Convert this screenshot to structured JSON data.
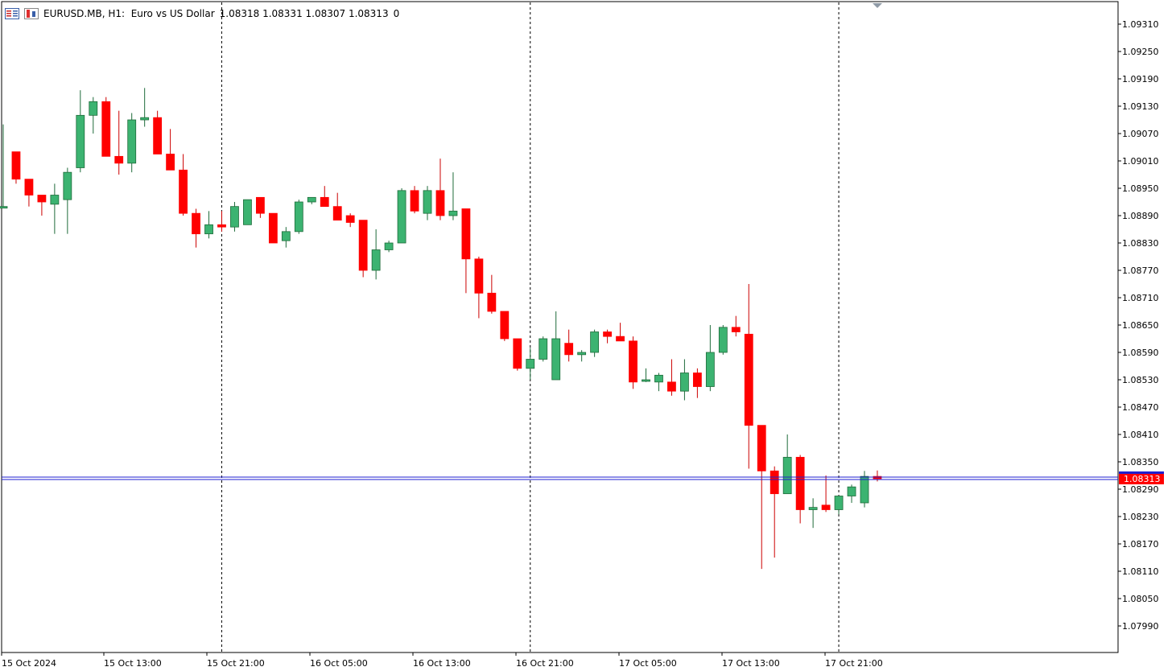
{
  "header": {
    "symbol_info": "EURUSD.MB, H1:  Euro vs US Dollar",
    "ohlc_values": "1.08318 1.08331 1.08307 1.08313",
    "tick_volume": "0",
    "icons": [
      "chart-window-icon",
      "trading-icon"
    ]
  },
  "price_axis": {
    "labels": [
      "1.09310",
      "1.09250",
      "1.09190",
      "1.09130",
      "1.09070",
      "1.09010",
      "1.08950",
      "1.08890",
      "1.08830",
      "1.08770",
      "1.08710",
      "1.08650",
      "1.08590",
      "1.08530",
      "1.08470",
      "1.08410",
      "1.08350",
      "1.08290",
      "1.08230",
      "1.08170",
      "1.08110",
      "1.08050",
      "1.07990"
    ],
    "current_price": "1.08313"
  },
  "time_axis": {
    "labels": [
      "15 Oct 2024",
      "15 Oct 13:00",
      "15 Oct 21:00",
      "16 Oct 05:00",
      "16 Oct 13:00",
      "16 Oct 21:00",
      "17 Oct 05:00",
      "17 Oct 13:00",
      "17 Oct 21:00"
    ]
  },
  "colors": {
    "bull": "#3cb371",
    "bear": "#ff0000",
    "bid_line": "#1f1fd0",
    "current_price_bg": "#ff0000",
    "grid_separator": "#000000"
  },
  "chart_data": {
    "type": "candlestick",
    "timeframe": "H1",
    "symbol": "EURUSD.MB",
    "ylim": [
      1.0796,
      1.0934
    ],
    "candles": [
      {
        "t": "15 Oct 2024 04:00",
        "o": 1.0891,
        "h": 1.0909,
        "l": 1.0891,
        "c": 1.0891
      },
      {
        "t": "15 Oct 2024 05:00",
        "o": 1.0903,
        "h": 1.0903,
        "l": 1.0896,
        "c": 1.0897
      },
      {
        "t": "15 Oct 2024 06:00",
        "o": 1.0897,
        "h": 1.0897,
        "l": 1.0891,
        "c": 1.08935
      },
      {
        "t": "15 Oct 2024 07:00",
        "o": 1.08935,
        "h": 1.08935,
        "l": 1.0889,
        "c": 1.0892
      },
      {
        "t": "15 Oct 2024 08:00",
        "o": 1.08915,
        "h": 1.0896,
        "l": 1.0885,
        "c": 1.08935
      },
      {
        "t": "15 Oct 2024 09:00",
        "o": 1.08925,
        "h": 1.08995,
        "l": 1.0885,
        "c": 1.08985
      },
      {
        "t": "15 Oct 2024 10:00",
        "o": 1.08995,
        "h": 1.09165,
        "l": 1.08985,
        "c": 1.0911
      },
      {
        "t": "15 Oct 2024 11:00",
        "o": 1.0911,
        "h": 1.0915,
        "l": 1.0907,
        "c": 1.0914
      },
      {
        "t": "15 Oct 2024 12:00",
        "o": 1.0914,
        "h": 1.0915,
        "l": 1.0902,
        "c": 1.0902
      },
      {
        "t": "15 Oct 2024 13:00",
        "o": 1.0902,
        "h": 1.0912,
        "l": 1.0898,
        "c": 1.09005
      },
      {
        "t": "15 Oct 2024 14:00",
        "o": 1.09005,
        "h": 1.09115,
        "l": 1.08985,
        "c": 1.091
      },
      {
        "t": "15 Oct 2024 15:00",
        "o": 1.091,
        "h": 1.0917,
        "l": 1.09085,
        "c": 1.09105
      },
      {
        "t": "15 Oct 2024 16:00",
        "o": 1.09105,
        "h": 1.0912,
        "l": 1.09025,
        "c": 1.09025
      },
      {
        "t": "15 Oct 2024 17:00",
        "o": 1.09025,
        "h": 1.0908,
        "l": 1.0899,
        "c": 1.0899
      },
      {
        "t": "15 Oct 2024 18:00",
        "o": 1.0899,
        "h": 1.09025,
        "l": 1.0889,
        "c": 1.08895
      },
      {
        "t": "15 Oct 2024 19:00",
        "o": 1.08895,
        "h": 1.08905,
        "l": 1.0882,
        "c": 1.0885
      },
      {
        "t": "15 Oct 2024 20:00",
        "o": 1.0885,
        "h": 1.089,
        "l": 1.0884,
        "c": 1.0887
      },
      {
        "t": "15 Oct 2024 21:00",
        "o": 1.0887,
        "h": 1.089,
        "l": 1.08855,
        "c": 1.08865
      },
      {
        "t": "15 Oct 2024 22:00",
        "o": 1.08865,
        "h": 1.0892,
        "l": 1.08855,
        "c": 1.0891
      },
      {
        "t": "15 Oct 2024 23:00",
        "o": 1.0887,
        "h": 1.08925,
        "l": 1.0887,
        "c": 1.08925
      },
      {
        "t": "16 Oct 2024 00:00",
        "o": 1.0893,
        "h": 1.0893,
        "l": 1.08885,
        "c": 1.08895
      },
      {
        "t": "16 Oct 2024 01:00",
        "o": 1.08895,
        "h": 1.08895,
        "l": 1.0883,
        "c": 1.0883
      },
      {
        "t": "16 Oct 2024 02:00",
        "o": 1.08835,
        "h": 1.08865,
        "l": 1.0882,
        "c": 1.08855
      },
      {
        "t": "16 Oct 2024 03:00",
        "o": 1.08855,
        "h": 1.08925,
        "l": 1.0885,
        "c": 1.0892
      },
      {
        "t": "16 Oct 2024 04:00",
        "o": 1.0892,
        "h": 1.0893,
        "l": 1.08915,
        "c": 1.0893
      },
      {
        "t": "16 Oct 2024 05:00",
        "o": 1.0893,
        "h": 1.08955,
        "l": 1.0891,
        "c": 1.0891
      },
      {
        "t": "16 Oct 2024 06:00",
        "o": 1.0891,
        "h": 1.0894,
        "l": 1.0888,
        "c": 1.0888
      },
      {
        "t": "16 Oct 2024 07:00",
        "o": 1.0889,
        "h": 1.08895,
        "l": 1.08865,
        "c": 1.08875
      },
      {
        "t": "16 Oct 2024 08:00",
        "o": 1.0888,
        "h": 1.0888,
        "l": 1.08755,
        "c": 1.0877
      },
      {
        "t": "16 Oct 2024 09:00",
        "o": 1.0877,
        "h": 1.0886,
        "l": 1.0875,
        "c": 1.08815
      },
      {
        "t": "16 Oct 2024 10:00",
        "o": 1.08815,
        "h": 1.08835,
        "l": 1.0881,
        "c": 1.0883
      },
      {
        "t": "16 Oct 2024 11:00",
        "o": 1.0883,
        "h": 1.0895,
        "l": 1.0883,
        "c": 1.08945
      },
      {
        "t": "16 Oct 2024 12:00",
        "o": 1.08945,
        "h": 1.08955,
        "l": 1.08895,
        "c": 1.089
      },
      {
        "t": "16 Oct 2024 13:00",
        "o": 1.08895,
        "h": 1.08955,
        "l": 1.0888,
        "c": 1.08945
      },
      {
        "t": "16 Oct 2024 14:00",
        "o": 1.08945,
        "h": 1.09015,
        "l": 1.0888,
        "c": 1.0889
      },
      {
        "t": "16 Oct 2024 15:00",
        "o": 1.0889,
        "h": 1.08985,
        "l": 1.0888,
        "c": 1.089
      },
      {
        "t": "16 Oct 2024 16:00",
        "o": 1.08905,
        "h": 1.08905,
        "l": 1.0872,
        "c": 1.08795
      },
      {
        "t": "16 Oct 2024 17:00",
        "o": 1.08795,
        "h": 1.088,
        "l": 1.08665,
        "c": 1.0872
      },
      {
        "t": "16 Oct 2024 18:00",
        "o": 1.0872,
        "h": 1.0876,
        "l": 1.08675,
        "c": 1.0868
      },
      {
        "t": "16 Oct 2024 19:00",
        "o": 1.0868,
        "h": 1.0868,
        "l": 1.08615,
        "c": 1.0862
      },
      {
        "t": "16 Oct 2024 20:00",
        "o": 1.0862,
        "h": 1.0862,
        "l": 1.0855,
        "c": 1.08555
      },
      {
        "t": "16 Oct 2024 21:00",
        "o": 1.08555,
        "h": 1.086,
        "l": 1.0853,
        "c": 1.08575
      },
      {
        "t": "16 Oct 2024 22:00",
        "o": 1.08575,
        "h": 1.08625,
        "l": 1.0857,
        "c": 1.0862
      },
      {
        "t": "16 Oct 2024 23:00",
        "o": 1.0853,
        "h": 1.0868,
        "l": 1.0853,
        "c": 1.0862
      },
      {
        "t": "17 Oct 2024 00:00",
        "o": 1.0861,
        "h": 1.0864,
        "l": 1.0857,
        "c": 1.08585
      },
      {
        "t": "17 Oct 2024 01:00",
        "o": 1.08585,
        "h": 1.08595,
        "l": 1.0857,
        "c": 1.0859
      },
      {
        "t": "17 Oct 2024 02:00",
        "o": 1.0859,
        "h": 1.0864,
        "l": 1.0858,
        "c": 1.08635
      },
      {
        "t": "17 Oct 2024 03:00",
        "o": 1.08635,
        "h": 1.0864,
        "l": 1.0861,
        "c": 1.08625
      },
      {
        "t": "17 Oct 2024 04:00",
        "o": 1.08625,
        "h": 1.08655,
        "l": 1.08615,
        "c": 1.08615
      },
      {
        "t": "17 Oct 2024 05:00",
        "o": 1.08615,
        "h": 1.08625,
        "l": 1.0851,
        "c": 1.08525
      },
      {
        "t": "17 Oct 2024 06:00",
        "o": 1.0853,
        "h": 1.08555,
        "l": 1.08525,
        "c": 1.0853
      },
      {
        "t": "17 Oct 2024 07:00",
        "o": 1.08525,
        "h": 1.08545,
        "l": 1.08505,
        "c": 1.0854
      },
      {
        "t": "17 Oct 2024 08:00",
        "o": 1.08525,
        "h": 1.08575,
        "l": 1.08495,
        "c": 1.08505
      },
      {
        "t": "17 Oct 2024 09:00",
        "o": 1.08505,
        "h": 1.08575,
        "l": 1.08485,
        "c": 1.08545
      },
      {
        "t": "17 Oct 2024 10:00",
        "o": 1.08545,
        "h": 1.08555,
        "l": 1.0849,
        "c": 1.08515
      },
      {
        "t": "17 Oct 2024 11:00",
        "o": 1.08515,
        "h": 1.0865,
        "l": 1.08505,
        "c": 1.0859
      },
      {
        "t": "17 Oct 2024 12:00",
        "o": 1.0859,
        "h": 1.0865,
        "l": 1.08585,
        "c": 1.08645
      },
      {
        "t": "17 Oct 2024 13:00",
        "o": 1.08645,
        "h": 1.0867,
        "l": 1.08625,
        "c": 1.08635
      },
      {
        "t": "17 Oct 2024 14:00",
        "o": 1.0863,
        "h": 1.0874,
        "l": 1.08335,
        "c": 1.0843
      },
      {
        "t": "17 Oct 2024 15:00",
        "o": 1.0843,
        "h": 1.0843,
        "l": 1.08115,
        "c": 1.0833
      },
      {
        "t": "17 Oct 2024 16:00",
        "o": 1.0833,
        "h": 1.0834,
        "l": 1.0814,
        "c": 1.0828
      },
      {
        "t": "17 Oct 2024 17:00",
        "o": 1.0828,
        "h": 1.0841,
        "l": 1.0828,
        "c": 1.0836
      },
      {
        "t": "17 Oct 2024 18:00",
        "o": 1.0836,
        "h": 1.08365,
        "l": 1.08215,
        "c": 1.08245
      },
      {
        "t": "17 Oct 2024 19:00",
        "o": 1.08245,
        "h": 1.0827,
        "l": 1.08205,
        "c": 1.0825
      },
      {
        "t": "17 Oct 2024 20:00",
        "o": 1.08255,
        "h": 1.0832,
        "l": 1.0824,
        "c": 1.08245
      },
      {
        "t": "17 Oct 2024 21:00",
        "o": 1.08245,
        "h": 1.08275,
        "l": 1.08235,
        "c": 1.08275
      },
      {
        "t": "17 Oct 2024 22:00",
        "o": 1.08275,
        "h": 1.083,
        "l": 1.0826,
        "c": 1.08295
      },
      {
        "t": "17 Oct 2024 23:00",
        "o": 1.0826,
        "h": 1.0833,
        "l": 1.0825,
        "c": 1.08318
      },
      {
        "t": "18 Oct 2024 00:00",
        "o": 1.08318,
        "h": 1.08331,
        "l": 1.08307,
        "c": 1.08313
      }
    ],
    "separators": [
      "15 Oct 21:00",
      "16 Oct 21:00",
      "17 Oct 21:00"
    ],
    "grid": false
  }
}
